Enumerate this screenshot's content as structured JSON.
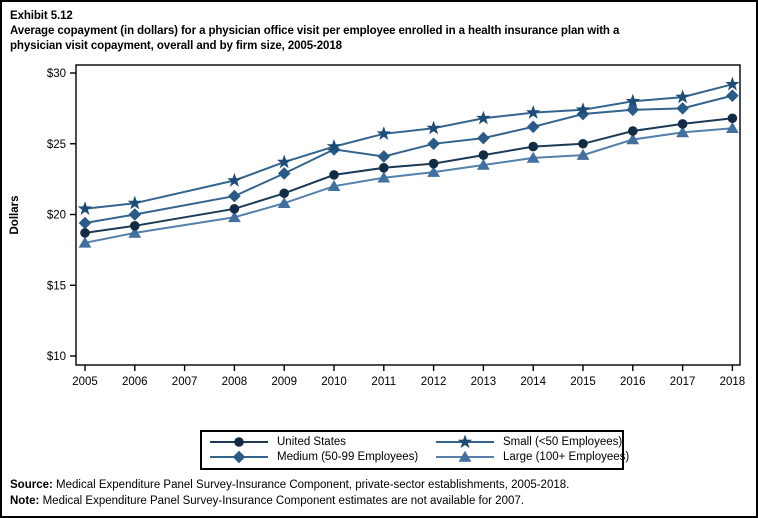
{
  "page": {
    "exhibit_label": "Exhibit 5.12",
    "title_lines": [
      "Average copayment (in dollars) for a physician office visit per employee enrolled in a health insurance plan with a",
      "physician visit copayment, overall and by firm size, 2005-2018"
    ]
  },
  "chart_data": {
    "type": "line",
    "x": [
      2005,
      2006,
      2008,
      2009,
      2010,
      2011,
      2012,
      2013,
      2014,
      2015,
      2016,
      2017,
      2018
    ],
    "x_axis_tick_labels": [
      "2005",
      "2006",
      "2007",
      "2008",
      "2009",
      "2010",
      "2011",
      "2012",
      "2013",
      "2014",
      "2015",
      "2016",
      "2017",
      "2018"
    ],
    "xlim": [
      2005,
      2018
    ],
    "ylabel": "Dollars",
    "ylim": [
      10,
      30
    ],
    "y_tick_values": [
      10,
      15,
      20,
      25,
      30
    ],
    "y_tick_labels": [
      "$10",
      "$15",
      "$20",
      "$25",
      "$30"
    ],
    "grid": false,
    "legend_position": "bottom",
    "data_not_available_year": 2007,
    "series": [
      {
        "name": "United States",
        "marker": "circle",
        "marker_color": "#132c45",
        "line_color": "#1c3a57",
        "values": [
          18.7,
          19.2,
          20.4,
          21.5,
          22.8,
          23.3,
          23.6,
          24.2,
          24.8,
          25.0,
          25.9,
          26.4,
          26.8
        ]
      },
      {
        "name": "Small (<50 Employees)",
        "marker": "star",
        "marker_color": "#1d4c77",
        "line_color": "#33648f",
        "values": [
          20.4,
          20.8,
          22.4,
          23.7,
          24.8,
          25.7,
          26.1,
          26.8,
          27.2,
          27.4,
          28.0,
          28.3,
          29.2
        ]
      },
      {
        "name": "Medium (50-99 Employees)",
        "marker": "diamond",
        "marker_color": "#2a5a88",
        "line_color": "#33648f",
        "values": [
          19.4,
          20.0,
          21.3,
          22.9,
          24.6,
          24.1,
          25.0,
          25.4,
          26.2,
          27.1,
          27.4,
          27.5,
          28.4
        ]
      },
      {
        "name": "Large (100+ Employees)",
        "marker": "triangle",
        "marker_color": "#416f9e",
        "line_color": "#5480ab",
        "values": [
          18.0,
          18.7,
          19.8,
          20.8,
          22.0,
          22.6,
          23.0,
          23.5,
          24.0,
          24.2,
          25.3,
          25.8,
          26.1
        ]
      }
    ]
  },
  "footer": {
    "source_label": "Source:",
    "source_text": "Medical Expenditure Panel Survey-Insurance Component, private-sector establishments, 2005-2018.",
    "note_label": "Note:",
    "note_text": "Medical Expenditure Panel Survey-Insurance Component estimates are not available for 2007."
  }
}
